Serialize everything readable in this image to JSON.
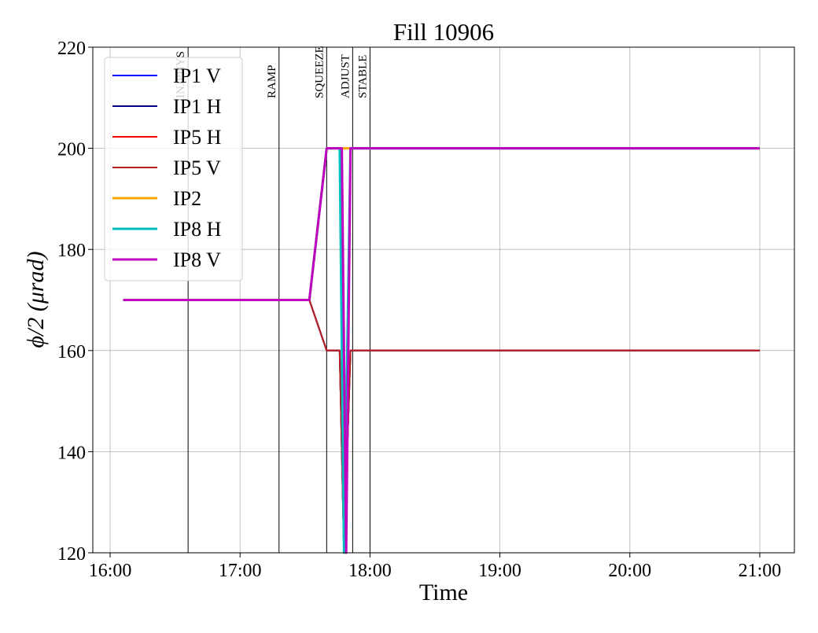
{
  "chart_data": {
    "type": "line",
    "title": "Fill 10906",
    "xlabel": "Time",
    "ylabel": "ϕ/2 (μrad)",
    "xlim": [
      "15:52",
      "21:16"
    ],
    "xticks": [
      "16:00",
      "17:00",
      "18:00",
      "19:00",
      "20:00",
      "21:00"
    ],
    "ylim": [
      120,
      220
    ],
    "yticks": [
      120,
      140,
      160,
      180,
      200,
      220
    ],
    "grid": true,
    "legend": "upper left",
    "phases": [
      {
        "name": "INJPHYS",
        "x": "16:36"
      },
      {
        "name": "RAMP",
        "x": "17:18"
      },
      {
        "name": "SQUEEZE",
        "x": "17:40"
      },
      {
        "name": "ADJUST",
        "x": "17:52"
      },
      {
        "name": "STABLE",
        "x": "18:00"
      }
    ],
    "series": [
      {
        "name": "IP1 V",
        "color": "#0000ff",
        "linewidth": 2,
        "x": [
          "16:06",
          "17:32",
          "17:40",
          "17:46",
          "17:48",
          "17:51",
          "21:00"
        ],
        "values": [
          170,
          170,
          160,
          160,
          120,
          160,
          160
        ]
      },
      {
        "name": "IP1 H",
        "color": "#00008b",
        "linewidth": 2,
        "x": [
          "16:06",
          "17:32",
          "17:40",
          "17:46",
          "17:48",
          "17:51",
          "21:00"
        ],
        "values": [
          170,
          170,
          160,
          160,
          120,
          160,
          160
        ]
      },
      {
        "name": "IP5 H",
        "color": "#ff0000",
        "linewidth": 2,
        "x": [
          "16:06",
          "17:32",
          "17:40",
          "17:46",
          "17:48",
          "17:51",
          "21:00"
        ],
        "values": [
          170,
          170,
          160,
          160,
          120,
          160,
          160
        ]
      },
      {
        "name": "IP5 V",
        "color": "#b22222",
        "linewidth": 2,
        "x": [
          "16:06",
          "17:32",
          "17:40",
          "17:46",
          "17:48",
          "17:51",
          "21:00"
        ],
        "values": [
          170,
          170,
          160,
          160,
          120,
          160,
          160
        ]
      },
      {
        "name": "IP2",
        "color": "#ffa500",
        "linewidth": 3,
        "x": [
          "16:06",
          "17:32",
          "17:40",
          "21:00"
        ],
        "values": [
          170,
          170,
          200,
          200
        ]
      },
      {
        "name": "IP8 H",
        "color": "#00bfbf",
        "linewidth": 3,
        "x": [
          "16:06",
          "17:32",
          "17:40",
          "17:46",
          "17:48",
          "17:51",
          "21:00"
        ],
        "values": [
          170,
          170,
          200,
          200,
          120,
          200,
          200
        ]
      },
      {
        "name": "IP8 V",
        "color": "#bf00bf",
        "linewidth": 3,
        "x": [
          "16:06",
          "17:32",
          "17:40",
          "17:47",
          "17:49",
          "17:51",
          "21:00"
        ],
        "values": [
          170,
          170,
          200,
          200,
          120,
          200,
          200
        ]
      }
    ]
  }
}
